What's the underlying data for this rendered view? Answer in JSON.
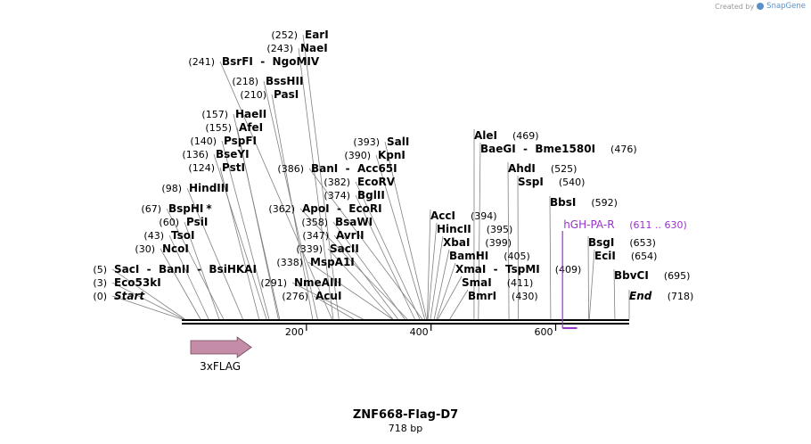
{
  "credit": {
    "prefix": "Created by",
    "brand": "SnapGene"
  },
  "map": {
    "title": "ZNF668-Flag-D7",
    "length_label": "718 bp",
    "length_bp": 718
  },
  "axis_ticks": [
    {
      "label": "200",
      "bp": 200
    },
    {
      "label": "400",
      "bp": 400
    },
    {
      "label": "600",
      "bp": 600
    }
  ],
  "features": [
    {
      "name": "3xFLAG",
      "start": 30,
      "end": 96,
      "color": "#c48ca6"
    }
  ],
  "primers": [
    {
      "name": "hGH-PA-R",
      "range": "(611 .. 630)",
      "start": 611,
      "end": 630,
      "color": "#9933cc"
    }
  ],
  "sites": [
    {
      "name": "Start",
      "pos": "(0)",
      "bp": 0,
      "side": "L",
      "italic": true
    },
    {
      "name": "Eco53kI",
      "pos": "(3)",
      "bp": 3,
      "side": "L"
    },
    {
      "name": "SacI  -  BanII  -  BsiHKAI",
      "pos": "(5)",
      "bp": 5,
      "side": "L"
    },
    {
      "name": "NcoI",
      "pos": "(30)",
      "bp": 30,
      "side": "L"
    },
    {
      "name": "TsoI",
      "pos": "(43)",
      "bp": 43,
      "side": "L"
    },
    {
      "name": "PsiI",
      "pos": "(60)",
      "bp": 60,
      "side": "L"
    },
    {
      "name": "BspHI",
      "pos": "(67)",
      "bp": 67,
      "side": "L",
      "star": "*"
    },
    {
      "name": "HindIII",
      "pos": "(98)",
      "bp": 98,
      "side": "L"
    },
    {
      "name": "PstI",
      "pos": "(124)",
      "bp": 124,
      "side": "L"
    },
    {
      "name": "BseYI",
      "pos": "(136)",
      "bp": 136,
      "side": "L"
    },
    {
      "name": "PspFI",
      "pos": "(140)",
      "bp": 140,
      "side": "L"
    },
    {
      "name": "AfeI",
      "pos": "(155)",
      "bp": 155,
      "side": "L"
    },
    {
      "name": "HaeII",
      "pos": "(157)",
      "bp": 157,
      "side": "L"
    },
    {
      "name": "PasI",
      "pos": "(210)",
      "bp": 210,
      "side": "L"
    },
    {
      "name": "BssHII",
      "pos": "(218)",
      "bp": 218,
      "side": "L"
    },
    {
      "name": "BsrFI  -  NgoMIV",
      "pos": "(241)",
      "bp": 241,
      "side": "L"
    },
    {
      "name": "NaeI",
      "pos": "(243)",
      "bp": 243,
      "side": "L"
    },
    {
      "name": "EarI",
      "pos": "(252)",
      "bp": 252,
      "side": "L"
    },
    {
      "name": "AcuI",
      "pos": "(276)",
      "bp": 276,
      "side": "L"
    },
    {
      "name": "NmeAIII",
      "pos": "(291)",
      "bp": 291,
      "side": "L"
    },
    {
      "name": "MspA1I",
      "pos": "(338)",
      "bp": 338,
      "side": "L"
    },
    {
      "name": "SacII",
      "pos": "(339)",
      "bp": 339,
      "side": "L"
    },
    {
      "name": "AvrII",
      "pos": "(347)",
      "bp": 347,
      "side": "L"
    },
    {
      "name": "BsaWI",
      "pos": "(358)",
      "bp": 358,
      "side": "L"
    },
    {
      "name": "ApoI  -  EcoRI",
      "pos": "(362)",
      "bp": 362,
      "side": "L"
    },
    {
      "name": "BglII",
      "pos": "(374)",
      "bp": 374,
      "side": "L"
    },
    {
      "name": "EcoRV",
      "pos": "(382)",
      "bp": 382,
      "side": "L"
    },
    {
      "name": "BanI  -  Acc65I",
      "pos": "(386)",
      "bp": 386,
      "side": "L"
    },
    {
      "name": "KpnI",
      "pos": "(390)",
      "bp": 390,
      "side": "L"
    },
    {
      "name": "SalI",
      "pos": "(393)",
      "bp": 393,
      "side": "L"
    },
    {
      "name": "AccI",
      "pos": "(394)",
      "bp": 394,
      "side": "R"
    },
    {
      "name": "HincII",
      "pos": "(395)",
      "bp": 395,
      "side": "R"
    },
    {
      "name": "XbaI",
      "pos": "(399)",
      "bp": 399,
      "side": "R"
    },
    {
      "name": "BamHI",
      "pos": "(405)",
      "bp": 405,
      "side": "R"
    },
    {
      "name": "XmaI  -  TspMI",
      "pos": "(409)",
      "bp": 409,
      "side": "R"
    },
    {
      "name": "SmaI",
      "pos": "(411)",
      "bp": 411,
      "side": "R"
    },
    {
      "name": "BmrI",
      "pos": "(430)",
      "bp": 430,
      "side": "R"
    },
    {
      "name": "AleI",
      "pos": "(469)",
      "bp": 469,
      "side": "R"
    },
    {
      "name": "BaeGI  -  Bme1580I",
      "pos": "(476)",
      "bp": 476,
      "side": "R"
    },
    {
      "name": "AhdI",
      "pos": "(525)",
      "bp": 525,
      "side": "R"
    },
    {
      "name": "SspI",
      "pos": "(540)",
      "bp": 540,
      "side": "R"
    },
    {
      "name": "BbsI",
      "pos": "(592)",
      "bp": 592,
      "side": "R"
    },
    {
      "name": "BsgI",
      "pos": "(653)",
      "bp": 653,
      "side": "R"
    },
    {
      "name": "EciI",
      "pos": "(654)",
      "bp": 654,
      "side": "R"
    },
    {
      "name": "BbvCI",
      "pos": "(695)",
      "bp": 695,
      "side": "R"
    },
    {
      "name": "End",
      "pos": "(718)",
      "bp": 718,
      "side": "R",
      "italic": true
    }
  ]
}
